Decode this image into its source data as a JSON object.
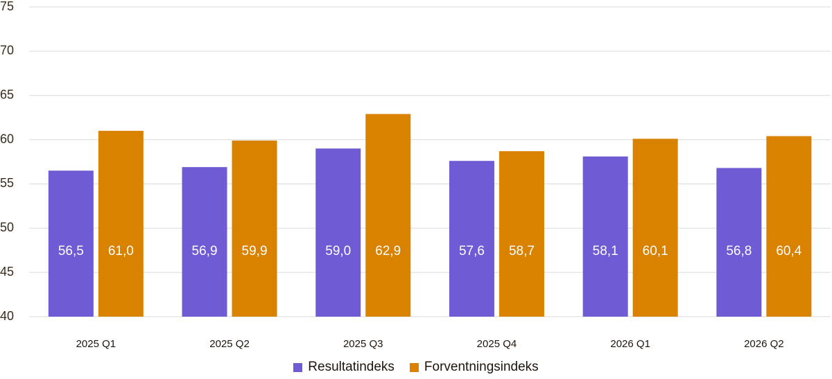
{
  "chart_data": {
    "type": "bar",
    "categories": [
      "2025 Q1",
      "2025 Q2",
      "2025 Q3",
      "2025 Q4",
      "2026 Q1",
      "2026 Q2"
    ],
    "series": [
      {
        "name": "Resultatindeks",
        "color": "#6f5bd4",
        "values": [
          56.5,
          56.9,
          59.0,
          57.6,
          58.1,
          56.8
        ]
      },
      {
        "name": "Forventningsindeks",
        "color": "#d98200",
        "values": [
          61.0,
          59.9,
          62.9,
          58.7,
          60.1,
          60.4
        ]
      }
    ],
    "data_labels": [
      [
        "56,5",
        "56,9",
        "59,0",
        "57,6",
        "58,1",
        "56,8"
      ],
      [
        "61,0",
        "59,9",
        "62,9",
        "58,7",
        "60,1",
        "60,4"
      ]
    ],
    "yticks": [
      "40",
      "45",
      "50",
      "55",
      "60",
      "65",
      "70",
      "75"
    ],
    "ylim": [
      40,
      75
    ],
    "grid": true,
    "legend_position": "bottom-center",
    "title": "",
    "xlabel": "",
    "ylabel": ""
  },
  "legend": {
    "series_1": "Resultatindeks",
    "series_2": "Forventningsindeks"
  }
}
